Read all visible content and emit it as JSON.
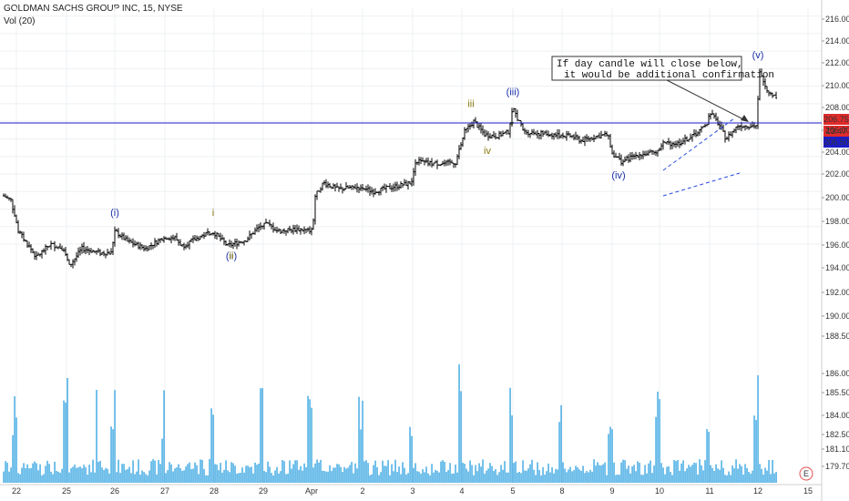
{
  "header": {
    "symbol_line": "GOLDMAN SACHS GROUP INC, 15, NYSE",
    "volume_line": "Vol (20)"
  },
  "chart_data": {
    "type": "candlestick",
    "price_axis": {
      "ticks": [
        "216.00",
        "214.00",
        "212.00",
        "210.00",
        "208.00",
        "206.00",
        "204.00",
        "202.00",
        "200.00",
        "198.00",
        "196.00",
        "194.00",
        "192.00",
        "190.00",
        "188.50",
        "186.00",
        "185.50",
        "184.00",
        "182.50",
        "181.10",
        "179.70",
        "178.30"
      ],
      "ylim": [
        176.5,
        217
      ]
    },
    "time_axis": {
      "labels": [
        "22",
        "25",
        "26",
        "27",
        "28",
        "29",
        "Apr",
        "2",
        "3",
        "4",
        "5",
        "8",
        "9",
        "10",
        "11",
        "12",
        "15"
      ]
    },
    "price_labels": {
      "last_price": "206.75",
      "countdown": "13:47",
      "line_level": "206.50"
    },
    "reference_line": {
      "level": 206.5,
      "color": "#1c1cc8"
    },
    "wave_labels": [
      {
        "text": "(i)",
        "color": "#1a2fa8",
        "price": 193.0,
        "date_index": 2
      },
      {
        "text": "(ii)",
        "color": "#1a2fa8",
        "price": 188.6,
        "date_index": 3
      },
      {
        "text": "i",
        "color": "#8a7a10",
        "price": 193.0,
        "date_index": 4
      },
      {
        "text": "ii",
        "color": "#8a7a10",
        "price": 188.6,
        "date_index": 4
      },
      {
        "text": "iii",
        "color": "#8a7a10",
        "price": 205.4,
        "date_index": 9
      },
      {
        "text": "iv",
        "color": "#8a7a10",
        "price": 200.6,
        "date_index": 9
      },
      {
        "text": "(iii)",
        "color": "#1a2fa8",
        "price": 207.0,
        "date_index": 10
      },
      {
        "text": "(iv)",
        "color": "#1a2fa8",
        "price": 198.3,
        "date_index": 12
      },
      {
        "text": "(v)",
        "color": "#1a2fa8",
        "price": 211.2,
        "date_index": 15
      }
    ],
    "annotation": {
      "lines": [
        "If day candle will close below,",
        "it would be additional confirmation"
      ]
    },
    "volume_axis": {
      "ticks": [
        "185.50",
        "184.00",
        "182.50",
        "181.10",
        "179.70",
        "178.30"
      ]
    },
    "colors": {
      "bar": "#000000",
      "volume": "#2b9fe0",
      "channel": "#2a4be0",
      "price_badge": "#e02a2a",
      "line_badge": "#1c1cc8"
    },
    "badge": "E"
  }
}
